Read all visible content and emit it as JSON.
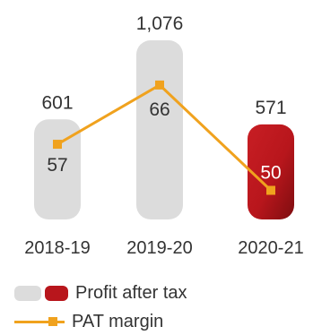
{
  "chart_data": {
    "type": "bar",
    "categories": [
      "2018-19",
      "2019-20",
      "2020-21"
    ],
    "series": [
      {
        "name": "Profit after tax",
        "type": "bar",
        "values": [
          601,
          1076,
          571
        ],
        "value_labels": [
          "601",
          "1,076",
          "571"
        ]
      },
      {
        "name": "PAT margin",
        "type": "line",
        "values": [
          57,
          66,
          50
        ],
        "value_labels": [
          "57",
          "66",
          "50"
        ]
      }
    ],
    "highlight_category": "2020-21",
    "colors": {
      "bar": "#dcdcdc",
      "bar_highlight": "#b8161c",
      "line": "#f0a21e",
      "text": "#333333",
      "text_on_highlight": "#ffffff"
    },
    "bar_ylim": [
      0,
      1100
    ],
    "line_ylim": [
      0,
      100
    ],
    "legend": [
      {
        "label": "Profit after tax",
        "kind": "bars"
      },
      {
        "label": "PAT margin",
        "kind": "line"
      }
    ],
    "legend_position": "bottom-left",
    "grid": false
  }
}
